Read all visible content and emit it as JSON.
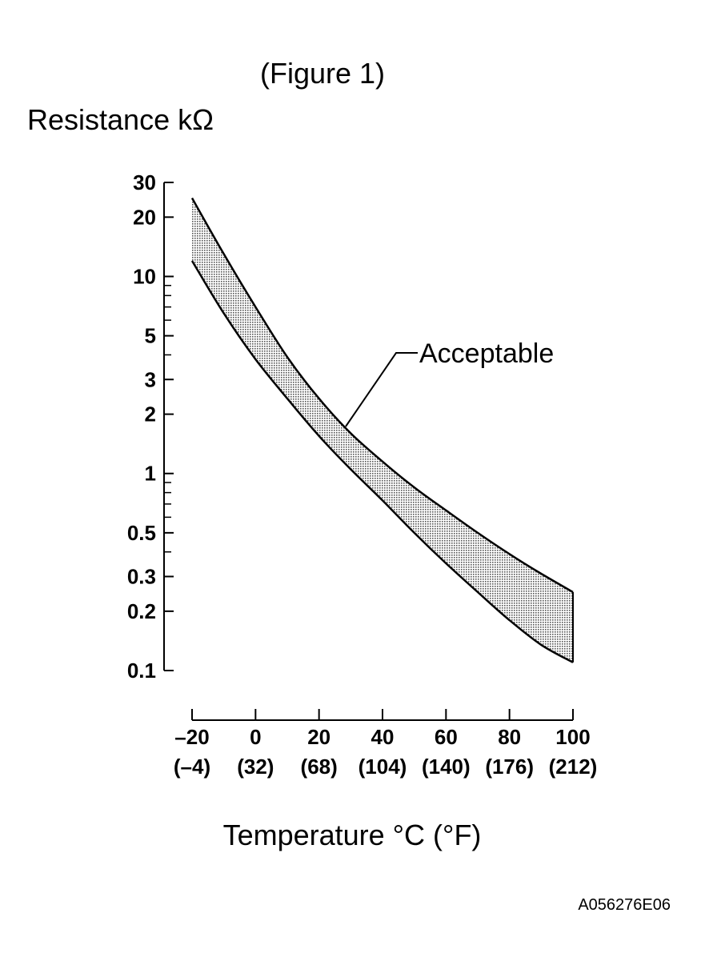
{
  "figure_label": "(Figure 1)",
  "code": "A056276E06",
  "chart_data": {
    "type": "area",
    "title": "",
    "ylabel": "Resistance kΩ",
    "xlabel": "Temperature °C (°F)",
    "y_scale": "log",
    "ylim": [
      0.1,
      30
    ],
    "xlim": [
      -20,
      100
    ],
    "y_ticks": [
      30,
      20,
      10,
      5,
      3,
      2,
      1,
      0.5,
      0.3,
      0.2,
      0.1
    ],
    "y_tick_labels": [
      "30",
      "20",
      "10",
      "5",
      "3",
      "2",
      "1",
      "0.5",
      "0.3",
      "0.2",
      "0.1"
    ],
    "y_minor_ticks": [
      9,
      8,
      7,
      6,
      4,
      0.9,
      0.8,
      0.7,
      0.6,
      0.4
    ],
    "x_ticks": [
      -20,
      0,
      20,
      40,
      60,
      80,
      100
    ],
    "x_tick_labels": [
      "–20",
      "0",
      "20",
      "40",
      "60",
      "80",
      "100"
    ],
    "x_tick_labels_f": [
      "(–4)",
      "(32)",
      "(68)",
      "(104)",
      "(140)",
      "(176)",
      "(212)"
    ],
    "x": [
      -20,
      -10,
      0,
      10,
      20,
      30,
      40,
      50,
      60,
      70,
      80,
      90,
      100
    ],
    "series": [
      {
        "values": [
          25,
          13,
          7,
          3.9,
          2.4,
          1.6,
          1.15,
          0.85,
          0.65,
          0.5,
          0.39,
          0.31,
          0.25
        ]
      },
      {
        "values": [
          12,
          6.5,
          3.8,
          2.4,
          1.55,
          1.05,
          0.73,
          0.5,
          0.35,
          0.25,
          0.18,
          0.135,
          0.11
        ]
      }
    ],
    "band_fill": "#c8c8c8",
    "annotations": [
      {
        "text": "Acceptable",
        "x": 28,
        "y": 1.7
      }
    ],
    "grid": false,
    "legend": "none"
  }
}
